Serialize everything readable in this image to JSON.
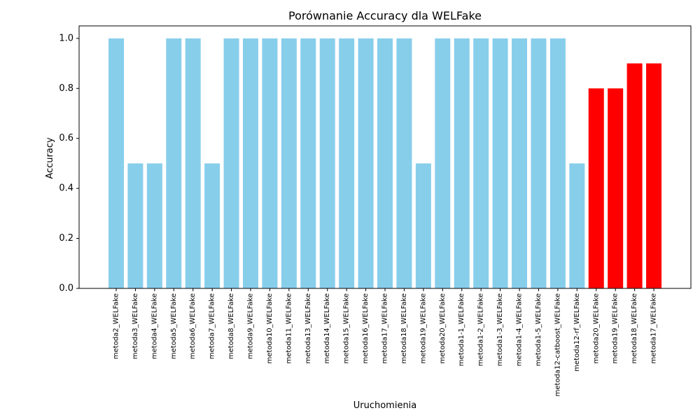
{
  "chart_data": {
    "type": "bar",
    "title": "Porównanie Accuracy dla WELFake",
    "xlabel": "Uruchomienia",
    "ylabel": "Accuracy",
    "ylim": [
      0,
      1.05
    ],
    "yticks": [
      "0.0",
      "0.2",
      "0.4",
      "0.6",
      "0.8",
      "1.0"
    ],
    "grid": false,
    "colors": {
      "default": "#87CEEB",
      "highlight": "#FF0000"
    },
    "categories": [
      "metoda2_WELFake",
      "metoda3_WELFake",
      "metoda4_WELFake",
      "metoda5_WELFake",
      "metoda6_WELFake",
      "metoda7_WELFake",
      "metoda8_WELFake",
      "metoda9_WELFake",
      "metoda10_WELFake",
      "metoda11_WELFake",
      "metoda13_WELFake",
      "metoda14_WELFake",
      "metoda15_WELFake",
      "metoda16_WELFake",
      "metoda17_WELFake",
      "metoda18_WELFake",
      "metoda19_WELFake",
      "metoda20_WELFake",
      "metoda1-1_WELFake",
      "metoda1-2_WELFake",
      "metoda1-3_WELFake",
      "metoda1-4_WELFake",
      "metoda1-5_WELFake",
      "metoda12-catboost_WELFake",
      "metoda12-rf_WELFake",
      "metoda20_WELFake",
      "metoda19_WELFake",
      "metoda18_WELFake",
      "metoda17_WELFake"
    ],
    "values": [
      1.0,
      0.5,
      0.5,
      1.0,
      1.0,
      0.5,
      1.0,
      1.0,
      1.0,
      1.0,
      1.0,
      1.0,
      1.0,
      1.0,
      1.0,
      1.0,
      0.5,
      1.0,
      1.0,
      1.0,
      1.0,
      1.0,
      1.0,
      1.0,
      0.5,
      0.8,
      0.8,
      0.9,
      0.9
    ],
    "bar_colors": [
      "default",
      "default",
      "default",
      "default",
      "default",
      "default",
      "default",
      "default",
      "default",
      "default",
      "default",
      "default",
      "default",
      "default",
      "default",
      "default",
      "default",
      "default",
      "default",
      "default",
      "default",
      "default",
      "default",
      "default",
      "default",
      "highlight",
      "highlight",
      "highlight",
      "highlight"
    ]
  }
}
